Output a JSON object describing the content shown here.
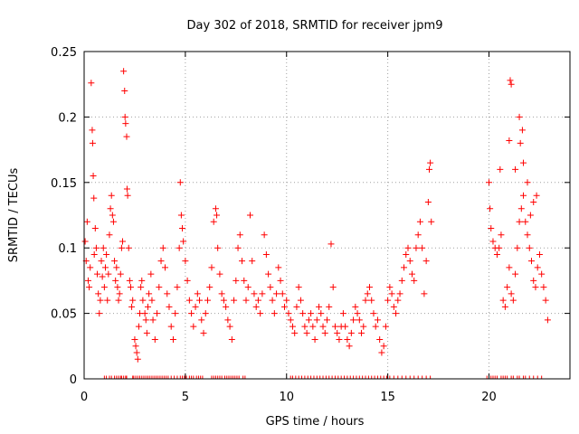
{
  "chart_data": {
    "type": "scatter",
    "title": "Day 302 of 2018, SRMTID for receiver jpm9",
    "xlabel": "GPS time / hours",
    "ylabel": "SRMTID / TECUs",
    "xlim": [
      0,
      24
    ],
    "ylim": [
      0,
      0.25
    ],
    "xticks": [
      0,
      5,
      10,
      15,
      20
    ],
    "xtick_labels": [
      "0",
      "5",
      "10",
      "15",
      "20"
    ],
    "yticks": [
      0,
      0.05,
      0.1,
      0.15,
      0.2,
      0.25
    ],
    "ytick_labels": [
      "0",
      "0.05",
      "0.1",
      "0.15",
      "0.2",
      "0.25"
    ],
    "grid": true,
    "marker": "+",
    "color": "#ff0000",
    "series": [
      {
        "name": "SRMTID",
        "points": [
          [
            0.05,
            0.105
          ],
          [
            0.1,
            0.09
          ],
          [
            0.15,
            0.12
          ],
          [
            0.2,
            0.075
          ],
          [
            0.25,
            0.07
          ],
          [
            0.3,
            0.085
          ],
          [
            0.35,
            0.226
          ],
          [
            0.4,
            0.19
          ],
          [
            0.42,
            0.18
          ],
          [
            0.45,
            0.155
          ],
          [
            0.48,
            0.138
          ],
          [
            0.5,
            0.095
          ],
          [
            0.55,
            0.115
          ],
          [
            0.6,
            0.1
          ],
          [
            0.65,
            0.08
          ],
          [
            0.7,
            0.065
          ],
          [
            0.75,
            0.05
          ],
          [
            0.8,
            0.06
          ],
          [
            0.85,
            0.09
          ],
          [
            0.9,
            0.078
          ],
          [
            0.95,
            0.1
          ],
          [
            1.0,
            0.07
          ],
          [
            1.05,
            0.085
          ],
          [
            1.1,
            0.095
          ],
          [
            1.15,
            0.06
          ],
          [
            1.2,
            0.08
          ],
          [
            1.25,
            0.11
          ],
          [
            1.3,
            0.13
          ],
          [
            1.35,
            0.14
          ],
          [
            1.4,
            0.125
          ],
          [
            1.45,
            0.12
          ],
          [
            1.5,
            0.09
          ],
          [
            1.55,
            0.075
          ],
          [
            1.6,
            0.085
          ],
          [
            1.65,
            0.07
          ],
          [
            1.7,
            0.06
          ],
          [
            1.75,
            0.065
          ],
          [
            1.8,
            0.08
          ],
          [
            1.85,
            0.1
          ],
          [
            1.9,
            0.105
          ],
          [
            1.95,
            0.235
          ],
          [
            2.0,
            0.22
          ],
          [
            2.02,
            0.2
          ],
          [
            2.05,
            0.195
          ],
          [
            2.1,
            0.185
          ],
          [
            2.12,
            0.145
          ],
          [
            2.15,
            0.14
          ],
          [
            2.2,
            0.1
          ],
          [
            2.25,
            0.075
          ],
          [
            2.3,
            0.07
          ],
          [
            2.35,
            0.055
          ],
          [
            2.4,
            0.06
          ],
          [
            2.5,
            0.03
          ],
          [
            2.55,
            0.025
          ],
          [
            2.6,
            0.02
          ],
          [
            2.65,
            0.015
          ],
          [
            2.7,
            0.04
          ],
          [
            2.75,
            0.05
          ],
          [
            2.8,
            0.07
          ],
          [
            2.85,
            0.075
          ],
          [
            2.9,
            0.06
          ],
          [
            3.0,
            0.05
          ],
          [
            3.05,
            0.045
          ],
          [
            3.1,
            0.035
          ],
          [
            3.15,
            0.055
          ],
          [
            3.2,
            0.065
          ],
          [
            3.3,
            0.08
          ],
          [
            3.35,
            0.06
          ],
          [
            3.4,
            0.045
          ],
          [
            3.5,
            0.03
          ],
          [
            3.6,
            0.05
          ],
          [
            3.7,
            0.07
          ],
          [
            3.8,
            0.09
          ],
          [
            3.9,
            0.1
          ],
          [
            4.0,
            0.085
          ],
          [
            4.1,
            0.065
          ],
          [
            4.2,
            0.055
          ],
          [
            4.3,
            0.04
          ],
          [
            4.4,
            0.03
          ],
          [
            4.5,
            0.05
          ],
          [
            4.6,
            0.07
          ],
          [
            4.7,
            0.1
          ],
          [
            4.75,
            0.15
          ],
          [
            4.8,
            0.125
          ],
          [
            4.85,
            0.115
          ],
          [
            4.9,
            0.105
          ],
          [
            5.0,
            0.09
          ],
          [
            5.1,
            0.075
          ],
          [
            5.2,
            0.06
          ],
          [
            5.3,
            0.05
          ],
          [
            5.4,
            0.04
          ],
          [
            5.5,
            0.055
          ],
          [
            5.6,
            0.065
          ],
          [
            5.7,
            0.06
          ],
          [
            5.8,
            0.045
          ],
          [
            5.9,
            0.035
          ],
          [
            6.0,
            0.05
          ],
          [
            6.1,
            0.06
          ],
          [
            6.2,
            0.07
          ],
          [
            6.3,
            0.085
          ],
          [
            6.4,
            0.12
          ],
          [
            6.5,
            0.13
          ],
          [
            6.55,
            0.125
          ],
          [
            6.6,
            0.1
          ],
          [
            6.7,
            0.08
          ],
          [
            6.8,
            0.065
          ],
          [
            6.9,
            0.06
          ],
          [
            7.0,
            0.055
          ],
          [
            7.1,
            0.045
          ],
          [
            7.2,
            0.04
          ],
          [
            7.3,
            0.03
          ],
          [
            7.4,
            0.06
          ],
          [
            7.5,
            0.075
          ],
          [
            7.6,
            0.1
          ],
          [
            7.7,
            0.11
          ],
          [
            7.8,
            0.09
          ],
          [
            7.9,
            0.075
          ],
          [
            8.0,
            0.06
          ],
          [
            8.1,
            0.07
          ],
          [
            8.2,
            0.125
          ],
          [
            8.3,
            0.09
          ],
          [
            8.4,
            0.065
          ],
          [
            8.5,
            0.055
          ],
          [
            8.6,
            0.06
          ],
          [
            8.7,
            0.05
          ],
          [
            8.8,
            0.065
          ],
          [
            8.9,
            0.11
          ],
          [
            9.0,
            0.095
          ],
          [
            9.1,
            0.08
          ],
          [
            9.2,
            0.07
          ],
          [
            9.3,
            0.06
          ],
          [
            9.4,
            0.05
          ],
          [
            9.5,
            0.065
          ],
          [
            9.6,
            0.085
          ],
          [
            9.7,
            0.075
          ],
          [
            9.8,
            0.065
          ],
          [
            9.9,
            0.055
          ],
          [
            10.0,
            0.06
          ],
          [
            10.1,
            0.05
          ],
          [
            10.2,
            0.045
          ],
          [
            10.3,
            0.04
          ],
          [
            10.4,
            0.035
          ],
          [
            10.5,
            0.055
          ],
          [
            10.6,
            0.07
          ],
          [
            10.7,
            0.06
          ],
          [
            10.8,
            0.05
          ],
          [
            10.9,
            0.04
          ],
          [
            11.0,
            0.035
          ],
          [
            11.1,
            0.045
          ],
          [
            11.2,
            0.05
          ],
          [
            11.3,
            0.04
          ],
          [
            11.4,
            0.03
          ],
          [
            11.5,
            0.045
          ],
          [
            11.6,
            0.055
          ],
          [
            11.7,
            0.05
          ],
          [
            11.8,
            0.04
          ],
          [
            11.9,
            0.035
          ],
          [
            12.0,
            0.045
          ],
          [
            12.1,
            0.055
          ],
          [
            12.2,
            0.103
          ],
          [
            12.3,
            0.07
          ],
          [
            12.4,
            0.04
          ],
          [
            12.5,
            0.035
          ],
          [
            12.6,
            0.03
          ],
          [
            12.7,
            0.04
          ],
          [
            12.8,
            0.05
          ],
          [
            12.9,
            0.04
          ],
          [
            13.0,
            0.03
          ],
          [
            13.1,
            0.025
          ],
          [
            13.2,
            0.035
          ],
          [
            13.3,
            0.045
          ],
          [
            13.4,
            0.055
          ],
          [
            13.5,
            0.05
          ],
          [
            13.6,
            0.045
          ],
          [
            13.7,
            0.035
          ],
          [
            13.8,
            0.04
          ],
          [
            13.9,
            0.06
          ],
          [
            14.0,
            0.065
          ],
          [
            14.1,
            0.07
          ],
          [
            14.2,
            0.06
          ],
          [
            14.3,
            0.05
          ],
          [
            14.4,
            0.04
          ],
          [
            14.5,
            0.045
          ],
          [
            14.6,
            0.03
          ],
          [
            14.7,
            0.02
          ],
          [
            14.8,
            0.025
          ],
          [
            14.9,
            0.04
          ],
          [
            15.0,
            0.06
          ],
          [
            15.1,
            0.07
          ],
          [
            15.2,
            0.065
          ],
          [
            15.3,
            0.055
          ],
          [
            15.4,
            0.05
          ],
          [
            15.5,
            0.06
          ],
          [
            15.6,
            0.065
          ],
          [
            15.7,
            0.075
          ],
          [
            15.8,
            0.085
          ],
          [
            15.9,
            0.095
          ],
          [
            16.0,
            0.1
          ],
          [
            16.1,
            0.09
          ],
          [
            16.2,
            0.08
          ],
          [
            16.3,
            0.075
          ],
          [
            16.4,
            0.1
          ],
          [
            16.5,
            0.11
          ],
          [
            16.6,
            0.12
          ],
          [
            16.7,
            0.1
          ],
          [
            16.8,
            0.065
          ],
          [
            16.9,
            0.09
          ],
          [
            17.0,
            0.135
          ],
          [
            17.05,
            0.16
          ],
          [
            17.1,
            0.165
          ],
          [
            17.15,
            0.12
          ],
          [
            20.0,
            0.15
          ],
          [
            20.05,
            0.13
          ],
          [
            20.1,
            0.115
          ],
          [
            20.2,
            0.105
          ],
          [
            20.3,
            0.1
          ],
          [
            20.4,
            0.095
          ],
          [
            20.5,
            0.1
          ],
          [
            20.6,
            0.11
          ],
          [
            20.7,
            0.06
          ],
          [
            20.8,
            0.055
          ],
          [
            20.9,
            0.07
          ],
          [
            21.0,
            0.085
          ],
          [
            21.1,
            0.065
          ],
          [
            21.2,
            0.06
          ],
          [
            21.3,
            0.08
          ],
          [
            21.4,
            0.1
          ],
          [
            21.5,
            0.12
          ],
          [
            21.6,
            0.13
          ],
          [
            21.7,
            0.14
          ],
          [
            21.8,
            0.12
          ],
          [
            21.9,
            0.11
          ],
          [
            22.0,
            0.1
          ],
          [
            22.1,
            0.09
          ],
          [
            22.2,
            0.075
          ],
          [
            22.3,
            0.07
          ],
          [
            22.4,
            0.085
          ],
          [
            22.5,
            0.095
          ],
          [
            22.6,
            0.08
          ],
          [
            22.7,
            0.07
          ],
          [
            22.8,
            0.06
          ],
          [
            22.9,
            0.045
          ],
          [
            21.5,
            0.2
          ],
          [
            21.55,
            0.18
          ],
          [
            21.05,
            0.228
          ],
          [
            21.1,
            0.225
          ],
          [
            21.0,
            0.182
          ],
          [
            21.3,
            0.16
          ],
          [
            21.65,
            0.19
          ],
          [
            21.7,
            0.165
          ],
          [
            20.55,
            0.16
          ],
          [
            21.9,
            0.15
          ],
          [
            22.05,
            0.125
          ],
          [
            22.2,
            0.135
          ],
          [
            22.35,
            0.14
          ]
        ]
      }
    ],
    "zero_markers_hours": [
      1.0,
      1.1,
      1.25,
      1.35,
      1.5,
      1.6,
      1.7,
      1.8,
      1.85,
      1.95,
      2.05,
      2.1,
      2.4,
      2.45,
      2.55,
      2.65,
      2.75,
      2.85,
      2.95,
      3.05,
      3.15,
      3.25,
      3.35,
      3.45,
      3.55,
      3.65,
      3.75,
      3.85,
      3.95,
      4.05,
      4.15,
      4.3,
      4.45,
      4.6,
      4.75,
      4.85,
      4.95,
      5.05,
      5.2,
      5.3,
      5.4,
      5.55,
      5.65,
      5.75,
      5.85,
      6.3,
      6.4,
      6.5,
      6.6,
      6.7,
      6.8,
      6.95,
      7.05,
      7.15,
      7.25,
      7.35,
      7.45,
      7.55,
      7.65,
      7.85,
      7.95,
      10.2,
      10.3,
      10.45,
      10.6,
      10.75,
      10.9,
      11.05,
      11.2,
      11.35,
      11.5,
      11.65,
      11.8,
      11.95,
      12.1,
      12.25,
      12.4,
      12.55,
      12.7,
      12.85,
      13.0,
      13.15,
      13.3,
      13.45,
      13.6,
      13.75,
      13.9,
      14.05,
      14.2,
      14.35,
      14.5,
      14.65,
      14.8,
      14.95,
      15.1,
      15.3,
      15.5,
      15.7,
      15.9,
      16.1,
      16.3,
      16.5,
      16.7,
      16.9,
      17.1,
      19.9,
      20.0,
      20.1,
      20.2,
      20.3,
      20.4,
      20.6,
      20.7,
      20.8,
      20.9,
      21.1,
      21.2,
      21.4,
      21.5,
      21.7,
      21.8,
      22.0,
      22.2,
      22.4,
      22.6
    ]
  }
}
